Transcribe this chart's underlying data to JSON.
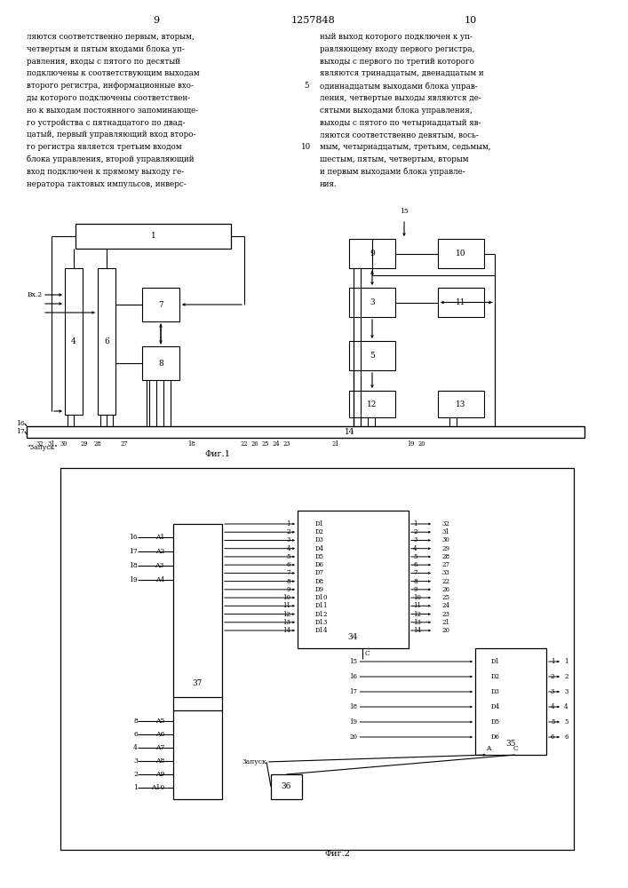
{
  "page_numbers_left": "9",
  "page_numbers_center": "1257848",
  "page_numbers_right": "10",
  "text_left": "ляются соответственно первым, вторым,\nчетвертым и пятым входами блока уп-\nравления, входы с пятого по десятый\nподключены к соответствующим выходам\nвторого регистра, информационные вхо-\nды которого подключены соответствен-\nно к выходам постоянного запоминающе-\nго устройства с пятнадцатого по двад-\nцатый, первый управляющий вход второ-\nго регистра является третьим входом\nблока управления, второй управляющий\nвход подключен к прямому выходу ге-\nнератора тактовых импульсов, инверс-",
  "line_num_5": "5",
  "line_num_10": "10",
  "text_right": "ный выход которого подключен к уп-\nравляющему входу первого регистра,\nвыходы с первого по третий которого\nявляются тринадцатым, двенадцатым и\nодиннадцатым выходами блока управ-\nления, четвертые выходы являются де-\nсятыми выходами блока управления,\nвыходы с пятого по четырнадцатый яв-\nляются соответственно девятым, вось-\nмым, четырнадцатым, третьим, седьмым,\nшестым, пятым, четвертым, вторым\nи первым выходами блока управле-\nния.",
  "fig1_caption": "Фиг.1",
  "fig2_caption": "Фиг.2",
  "bg": "#ffffff",
  "lc": "#000000"
}
